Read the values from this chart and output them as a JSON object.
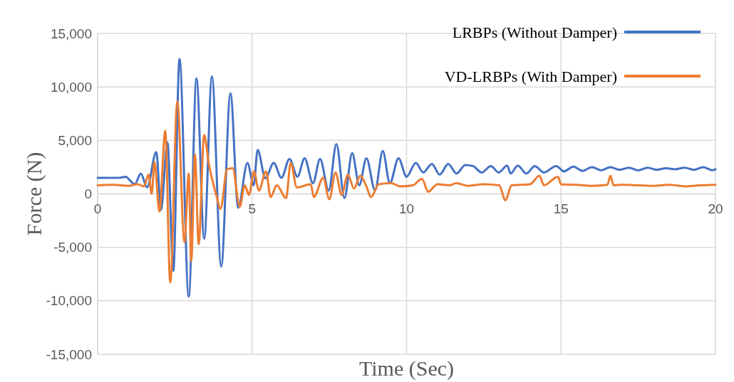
{
  "chart_data": {
    "type": "line",
    "xlabel": "Time (Sec)",
    "ylabel": "Force (N)",
    "xlim": [
      0,
      20
    ],
    "xticks": [
      0,
      5,
      10,
      15,
      20
    ],
    "ylim": [
      -15000,
      15000
    ],
    "yticks": [
      {
        "value": -15000,
        "label": "-15,000"
      },
      {
        "value": -10000,
        "label": "-10,000"
      },
      {
        "value": -5000,
        "label": "-5,000"
      },
      {
        "value": 0,
        "label": "0"
      },
      {
        "value": 5000,
        "label": "5,000"
      },
      {
        "value": 10000,
        "label": "10,000"
      },
      {
        "value": 15000,
        "label": "15,000"
      }
    ],
    "grid": true,
    "legend": "top right",
    "line_style": "solid",
    "marker": "none",
    "series": [
      {
        "name": "LRBPs (Without Damper)",
        "color": "#4472c4",
        "x": [
          0,
          0.7,
          0.9,
          1.2,
          1.4,
          1.6,
          1.9,
          2.05,
          2.26,
          2.45,
          2.65,
          2.95,
          3.2,
          3.45,
          3.7,
          4.0,
          4.3,
          4.55,
          4.85,
          5.05,
          5.18,
          5.43,
          5.7,
          5.95,
          6.21,
          6.47,
          6.7,
          6.97,
          7.2,
          7.48,
          7.73,
          7.99,
          8.24,
          8.47,
          8.7,
          8.98,
          9.23,
          9.46,
          9.74,
          10.0,
          10.3,
          10.54,
          10.82,
          11.07,
          11.35,
          11.62,
          11.9,
          12.15,
          12.43,
          12.73,
          12.98,
          13.26,
          13.37,
          13.6,
          13.88,
          14.15,
          14.45,
          14.84,
          15.1,
          15.4,
          15.7,
          16.0,
          16.3,
          16.6,
          16.9,
          17.2,
          17.5,
          17.8,
          18.1,
          18.4,
          18.7,
          19.0,
          19.3,
          19.6,
          19.9,
          20
        ],
        "values": [
          1500,
          1500,
          1600,
          900,
          1900,
          600,
          3900,
          -1500,
          4800,
          -7200,
          12600,
          -9600,
          10800,
          -4200,
          11000,
          -6800,
          9400,
          -1300,
          2900,
          800,
          4100,
          1460,
          2900,
          1500,
          3260,
          1600,
          3330,
          1000,
          3260,
          300,
          4650,
          -400,
          3800,
          800,
          3330,
          330,
          4000,
          1000,
          3330,
          1600,
          2900,
          2000,
          2800,
          1800,
          2800,
          1900,
          2700,
          2600,
          2000,
          2600,
          2000,
          2650,
          1900,
          2650,
          1900,
          2600,
          2000,
          2600,
          2100,
          2550,
          2150,
          2500,
          2200,
          2500,
          2250,
          2450,
          2200,
          2450,
          2250,
          2400,
          2300,
          2450,
          2250,
          2500,
          2200,
          2300
        ]
      },
      {
        "name": "VD-LRBPs (With Damper)",
        "color": "#ed7d31",
        "x": [
          0,
          0.5,
          1.0,
          1.3,
          1.5,
          1.65,
          1.75,
          1.84,
          2.0,
          2.19,
          2.35,
          2.58,
          2.81,
          2.95,
          3.03,
          3.15,
          3.27,
          3.45,
          3.6,
          3.84,
          3.98,
          4.19,
          4.37,
          4.6,
          4.76,
          4.9,
          5.06,
          5.22,
          5.45,
          5.6,
          5.8,
          6.1,
          6.25,
          6.45,
          6.9,
          7.0,
          7.3,
          7.5,
          7.7,
          7.9,
          8.1,
          8.3,
          8.5,
          8.7,
          8.85,
          9.1,
          9.5,
          9.8,
          10.2,
          10.5,
          10.7,
          11.0,
          11.4,
          11.6,
          12.0,
          12.5,
          13.0,
          13.2,
          13.4,
          14.0,
          14.3,
          14.45,
          14.9,
          15.0,
          15.5,
          16.0,
          16.5,
          16.6,
          16.7,
          17.0,
          17.5,
          18.0,
          18.5,
          19.0,
          19.5,
          20
        ],
        "values": [
          800,
          850,
          750,
          900,
          700,
          1800,
          0,
          3000,
          -1660,
          5900,
          -8300,
          8650,
          -4500,
          1900,
          -6300,
          3700,
          -4700,
          5500,
          2800,
          -100,
          -1400,
          2300,
          2400,
          -1200,
          800,
          -100,
          2100,
          300,
          2100,
          -300,
          800,
          -400,
          2900,
          600,
          900,
          -300,
          1500,
          -500,
          2000,
          -100,
          1800,
          500,
          1700,
          700,
          -300,
          900,
          1000,
          700,
          800,
          1400,
          200,
          900,
          800,
          1000,
          750,
          900,
          800,
          -600,
          800,
          900,
          1700,
          800,
          1600,
          900,
          850,
          750,
          850,
          1700,
          800,
          850,
          800,
          750,
          850,
          700,
          800,
          850
        ]
      }
    ]
  }
}
